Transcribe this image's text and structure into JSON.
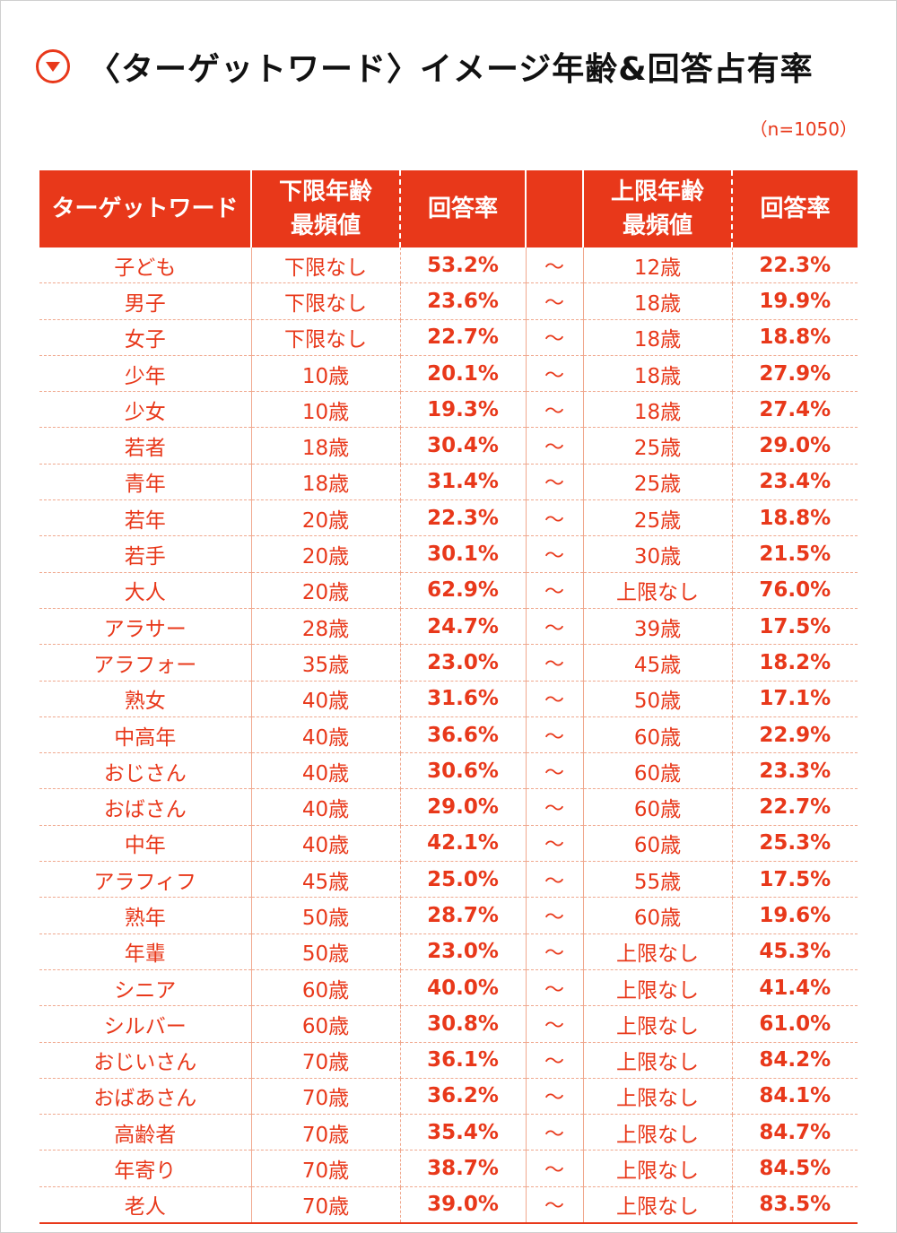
{
  "title": "〈ターゲットワード〉イメージ年齢&回答占有率",
  "note": "（n=1050）",
  "colors": {
    "accent": "#e8381a",
    "divider": "#f0a88e"
  },
  "chart_data": {
    "type": "table",
    "columns": [
      "ターゲットワード",
      "下限年齢\n最頻値",
      "回答率",
      "",
      "上限年齢\n最頻値",
      "回答率"
    ],
    "rows": [
      [
        "子ども",
        "下限なし",
        "53.2%",
        "〜",
        "12歳",
        "22.3%"
      ],
      [
        "男子",
        "下限なし",
        "23.6%",
        "〜",
        "18歳",
        "19.9%"
      ],
      [
        "女子",
        "下限なし",
        "22.7%",
        "〜",
        "18歳",
        "18.8%"
      ],
      [
        "少年",
        "10歳",
        "20.1%",
        "〜",
        "18歳",
        "27.9%"
      ],
      [
        "少女",
        "10歳",
        "19.3%",
        "〜",
        "18歳",
        "27.4%"
      ],
      [
        "若者",
        "18歳",
        "30.4%",
        "〜",
        "25歳",
        "29.0%"
      ],
      [
        "青年",
        "18歳",
        "31.4%",
        "〜",
        "25歳",
        "23.4%"
      ],
      [
        "若年",
        "20歳",
        "22.3%",
        "〜",
        "25歳",
        "18.8%"
      ],
      [
        "若手",
        "20歳",
        "30.1%",
        "〜",
        "30歳",
        "21.5%"
      ],
      [
        "大人",
        "20歳",
        "62.9%",
        "〜",
        "上限なし",
        "76.0%"
      ],
      [
        "アラサー",
        "28歳",
        "24.7%",
        "〜",
        "39歳",
        "17.5%"
      ],
      [
        "アラフォー",
        "35歳",
        "23.0%",
        "〜",
        "45歳",
        "18.2%"
      ],
      [
        "熟女",
        "40歳",
        "31.6%",
        "〜",
        "50歳",
        "17.1%"
      ],
      [
        "中高年",
        "40歳",
        "36.6%",
        "〜",
        "60歳",
        "22.9%"
      ],
      [
        "おじさん",
        "40歳",
        "30.6%",
        "〜",
        "60歳",
        "23.3%"
      ],
      [
        "おばさん",
        "40歳",
        "29.0%",
        "〜",
        "60歳",
        "22.7%"
      ],
      [
        "中年",
        "40歳",
        "42.1%",
        "〜",
        "60歳",
        "25.3%"
      ],
      [
        "アラフィフ",
        "45歳",
        "25.0%",
        "〜",
        "55歳",
        "17.5%"
      ],
      [
        "熟年",
        "50歳",
        "28.7%",
        "〜",
        "60歳",
        "19.6%"
      ],
      [
        "年輩",
        "50歳",
        "23.0%",
        "〜",
        "上限なし",
        "45.3%"
      ],
      [
        "シニア",
        "60歳",
        "40.0%",
        "〜",
        "上限なし",
        "41.4%"
      ],
      [
        "シルバー",
        "60歳",
        "30.8%",
        "〜",
        "上限なし",
        "61.0%"
      ],
      [
        "おじいさん",
        "70歳",
        "36.1%",
        "〜",
        "上限なし",
        "84.2%"
      ],
      [
        "おばあさん",
        "70歳",
        "36.2%",
        "〜",
        "上限なし",
        "84.1%"
      ],
      [
        "高齢者",
        "70歳",
        "35.4%",
        "〜",
        "上限なし",
        "84.7%"
      ],
      [
        "年寄り",
        "70歳",
        "38.7%",
        "〜",
        "上限なし",
        "84.5%"
      ],
      [
        "老人",
        "70歳",
        "39.0%",
        "〜",
        "上限なし",
        "83.5%"
      ]
    ]
  }
}
